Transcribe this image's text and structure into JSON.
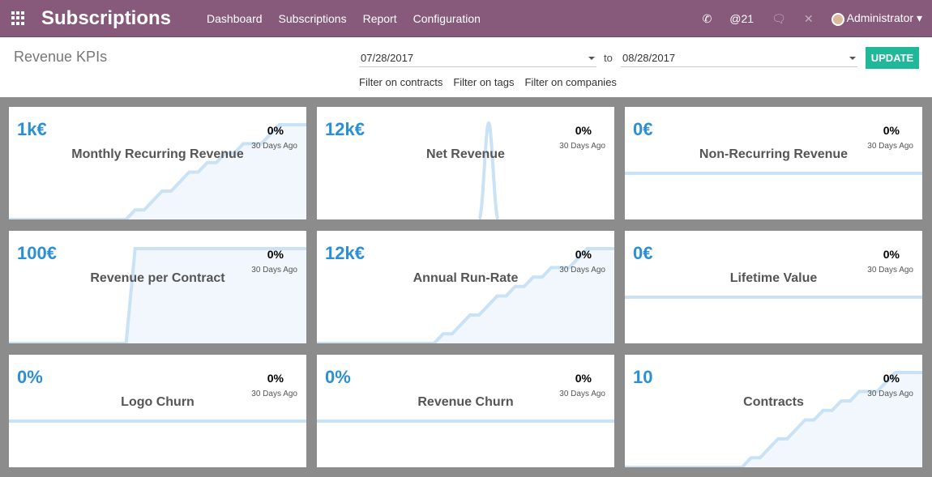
{
  "nav": {
    "brand": "Subscriptions",
    "menus": [
      "Dashboard",
      "Subscriptions",
      "Report",
      "Configuration"
    ],
    "mentions": "@21",
    "user": "Administrator"
  },
  "controls": {
    "title": "Revenue KPIs",
    "date_from": "07/28/2017",
    "to": "to",
    "date_to": "08/28/2017",
    "update": "UPDATE",
    "filters": [
      "Filter on contracts",
      "Filter on tags",
      "Filter on companies"
    ]
  },
  "colors": {
    "nav": "#875a7b",
    "accent": "#2b8fd6",
    "button": "#21b799",
    "line": "#c9e2f5"
  },
  "cards": [
    {
      "value": "1k€",
      "name": "Monthly Recurring Revenue",
      "pct": "0%",
      "ago": "30 Days Ago",
      "series": [
        0,
        0,
        0,
        0,
        0,
        0,
        0,
        0,
        0,
        0,
        0,
        0,
        0,
        0,
        1,
        1,
        2,
        3,
        3,
        4,
        5,
        5,
        6,
        6,
        7,
        7,
        8,
        8,
        8,
        9,
        10,
        10,
        10,
        10
      ]
    },
    {
      "value": "12k€",
      "name": "Net Revenue",
      "pct": "0%",
      "ago": "30 Days Ago",
      "series": "spike"
    },
    {
      "value": "0€",
      "name": "Non-Recurring Revenue",
      "pct": "0%",
      "ago": "30 Days Ago",
      "series": "flat"
    },
    {
      "value": "100€",
      "name": "Revenue per Contract",
      "pct": "0%",
      "ago": "30 Days Ago",
      "series": [
        0,
        0,
        0,
        0,
        0,
        0,
        0,
        0,
        0,
        0,
        0,
        0,
        0,
        0,
        10,
        10,
        10,
        10,
        10,
        10,
        10,
        10,
        10,
        10,
        10,
        10,
        10,
        10,
        10,
        10,
        10,
        10,
        10,
        10
      ]
    },
    {
      "value": "12k€",
      "name": "Annual Run-Rate",
      "pct": "0%",
      "ago": "30 Days Ago",
      "series": [
        0,
        0,
        0,
        0,
        0,
        0,
        0,
        0,
        0,
        0,
        0,
        0,
        0,
        0,
        1,
        1,
        2,
        3,
        3,
        4,
        5,
        5,
        6,
        6,
        7,
        7,
        8,
        8,
        8,
        9,
        10,
        10,
        10,
        10
      ]
    },
    {
      "value": "0€",
      "name": "Lifetime Value",
      "pct": "0%",
      "ago": "30 Days Ago",
      "series": "flat"
    },
    {
      "value": "0%",
      "name": "Logo Churn",
      "pct": "0%",
      "ago": "30 Days Ago",
      "series": "flat"
    },
    {
      "value": "0%",
      "name": "Revenue Churn",
      "pct": "0%",
      "ago": "30 Days Ago",
      "series": "flat"
    },
    {
      "value": "10",
      "name": "Contracts",
      "pct": "0%",
      "ago": "30 Days Ago",
      "series": [
        0,
        0,
        0,
        0,
        0,
        0,
        0,
        0,
        0,
        0,
        0,
        0,
        0,
        0,
        1,
        1,
        2,
        3,
        3,
        4,
        5,
        5,
        6,
        6,
        7,
        7,
        8,
        8,
        8,
        9,
        10,
        10,
        10,
        10
      ]
    }
  ]
}
